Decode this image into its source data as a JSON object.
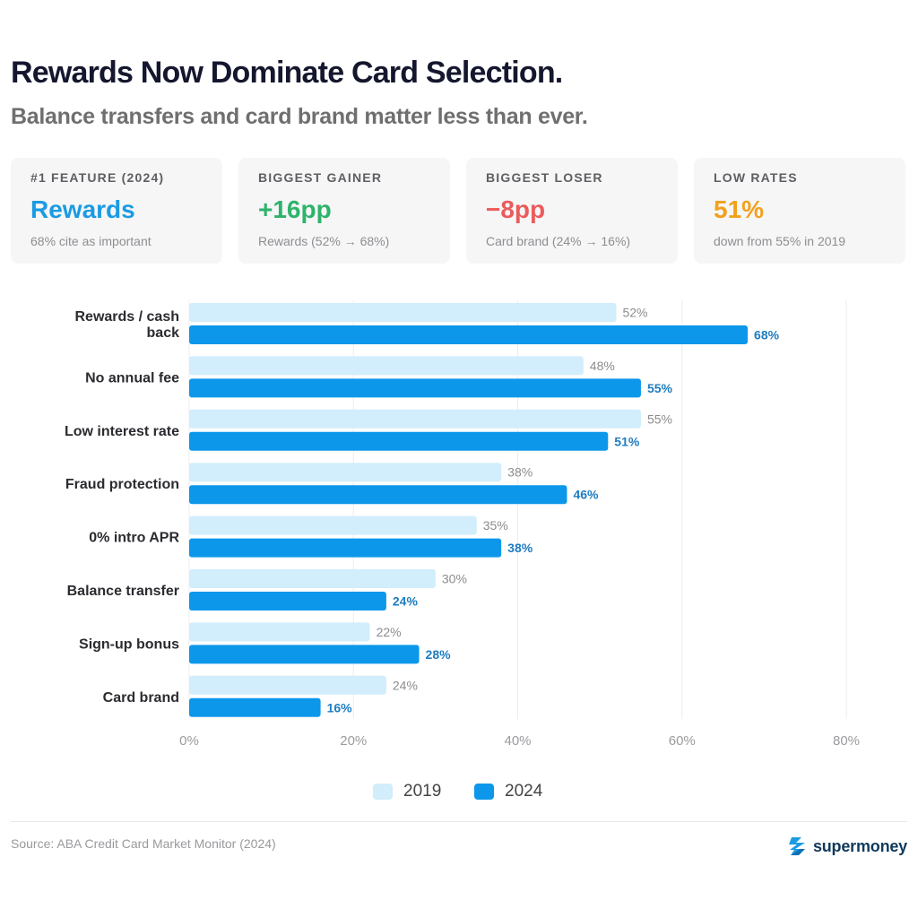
{
  "header": {
    "title": "Rewards Now Dominate Card Selection.",
    "subtitle": "Balance transfers and card brand matter less than ever."
  },
  "cards": [
    {
      "label": "#1 FEATURE (2024)",
      "value": "Rewards",
      "note": "68% cite as important",
      "color": "#1a9be3"
    },
    {
      "label": "BIGGEST GAINER",
      "value": "+16pp",
      "note": "Rewards (52% → 68%)",
      "color": "#2eb36b"
    },
    {
      "label": "BIGGEST LOSER",
      "value": "−8pp",
      "note": "Card brand (24% → 16%)",
      "color": "#ec5b5b"
    },
    {
      "label": "LOW RATES",
      "value": "51%",
      "note": "down from 55% in 2019",
      "color": "#f3a11c"
    }
  ],
  "chart_data": {
    "type": "bar",
    "orientation": "horizontal",
    "categories": [
      [
        "Rewards / cash",
        "back"
      ],
      [
        "No annual fee"
      ],
      [
        "Low interest rate"
      ],
      [
        "Fraud protection"
      ],
      [
        "0% intro APR"
      ],
      [
        "Balance transfer"
      ],
      [
        "Sign-up bonus"
      ],
      [
        "Card brand"
      ]
    ],
    "series": [
      {
        "name": "2019",
        "color": "#d2edfb",
        "label_color": "#8c8c8c",
        "values": [
          52,
          48,
          55,
          38,
          35,
          30,
          22,
          24
        ]
      },
      {
        "name": "2024",
        "color": "#0d97ea",
        "label_color": "#1f7cc0",
        "values": [
          68,
          55,
          51,
          46,
          38,
          24,
          28,
          16
        ]
      }
    ],
    "xlim": [
      0,
      80
    ],
    "xticks": [
      0,
      20,
      40,
      60,
      80
    ],
    "tick_suffix": "%",
    "value_suffix": "%",
    "grid": "vertical",
    "legend": "bottom-center"
  },
  "footer": {
    "source": "Source: ABA Credit Card Market Monitor (2024)",
    "brand": "supermoney",
    "brand_icon": "supermoney-logo-icon"
  }
}
